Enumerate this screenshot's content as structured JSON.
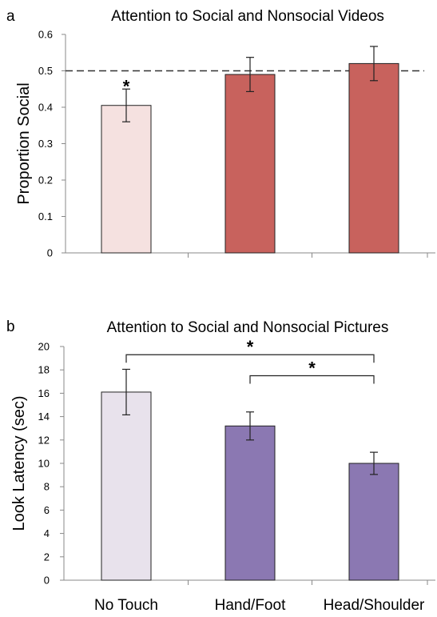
{
  "chart_data": [
    {
      "type": "bar",
      "panel": "a",
      "title": "Attention to Social and Nonsocial Videos",
      "xlabel": "",
      "ylabel": "Proportion Social",
      "ylim": [
        0,
        0.6
      ],
      "yticks": [
        "0",
        "0.1",
        "0.2",
        "0.3",
        "0.4",
        "0.5",
        "0.6"
      ],
      "reference_line": 0.5,
      "categories": [
        "No Touch",
        "Hand/Foot",
        "Head/Shoulder"
      ],
      "values": [
        0.405,
        0.49,
        0.52
      ],
      "errors": [
        0.045,
        0.047,
        0.047
      ],
      "colors": [
        "#f5e1e0",
        "#c8625d",
        "#c8625d"
      ],
      "annotations": [
        {
          "category": 0,
          "text": "*"
        }
      ]
    },
    {
      "type": "bar",
      "panel": "b",
      "title": "Attention to Social and Nonsocial Pictures",
      "xlabel": "",
      "ylabel": "Look Latency (sec)",
      "ylim": [
        0,
        20
      ],
      "yticks": [
        "0",
        "2",
        "4",
        "6",
        "8",
        "10",
        "12",
        "14",
        "16",
        "18",
        "20"
      ],
      "categories": [
        "No Touch",
        "Hand/Foot",
        "Head/Shoulder"
      ],
      "values": [
        16.1,
        13.2,
        10.0
      ],
      "errors": [
        1.95,
        1.2,
        0.95
      ],
      "colors": [
        "#e8e2ec",
        "#8b78b2",
        "#8b78b2"
      ],
      "brackets": [
        {
          "from": 0,
          "to": 2,
          "y": 19.3,
          "text": "*"
        },
        {
          "from": 1,
          "to": 2,
          "y": 17.5,
          "text": "*"
        }
      ]
    }
  ]
}
